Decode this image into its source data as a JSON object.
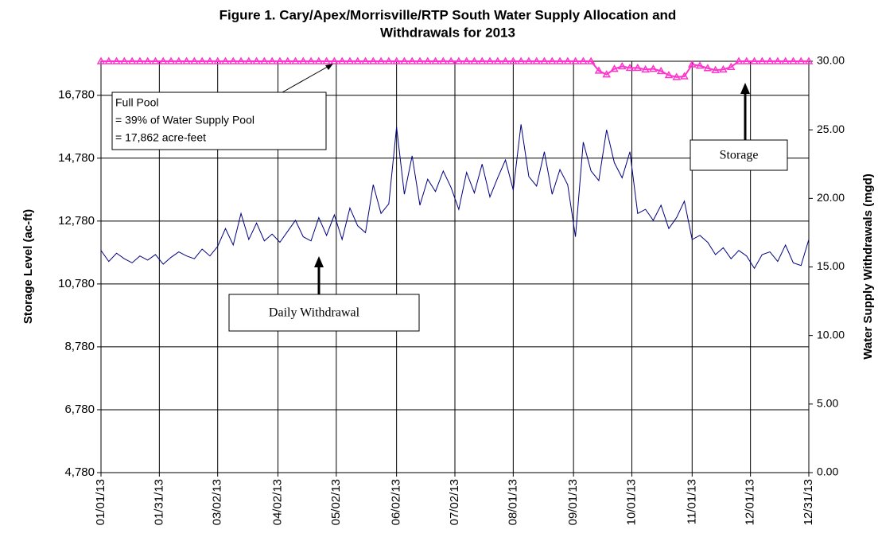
{
  "chart_data": {
    "type": "line",
    "title": [
      "Figure 1.  Cary/Apex/Morrisville/RTP South Water Supply Allocation and",
      "Withdrawals for 2013"
    ],
    "y_label": "Storage Level (ac-ft)",
    "y2_label": "Water Supply Withdrawals (mgd)",
    "x": [
      "01/01/13",
      "01/05/13",
      "01/09/13",
      "01/13/13",
      "01/17/13",
      "01/21/13",
      "01/25/13",
      "01/29/13",
      "02/02/13",
      "02/06/13",
      "02/10/13",
      "02/14/13",
      "02/18/13",
      "02/22/13",
      "02/26/13",
      "03/02/13",
      "03/06/13",
      "03/10/13",
      "03/14/13",
      "03/18/13",
      "03/22/13",
      "03/26/13",
      "03/30/13",
      "04/03/13",
      "04/07/13",
      "04/11/13",
      "04/15/13",
      "04/19/13",
      "04/23/13",
      "04/27/13",
      "05/01/13",
      "05/05/13",
      "05/09/13",
      "05/13/13",
      "05/17/13",
      "05/21/13",
      "05/25/13",
      "05/29/13",
      "06/02/13",
      "06/06/13",
      "06/10/13",
      "06/14/13",
      "06/18/13",
      "06/22/13",
      "06/26/13",
      "06/30/13",
      "07/04/13",
      "07/08/13",
      "07/12/13",
      "07/16/13",
      "07/20/13",
      "07/24/13",
      "07/28/13",
      "08/01/13",
      "08/05/13",
      "08/09/13",
      "08/13/13",
      "08/17/13",
      "08/21/13",
      "08/25/13",
      "08/29/13",
      "09/02/13",
      "09/06/13",
      "09/10/13",
      "09/14/13",
      "09/18/13",
      "09/22/13",
      "09/26/13",
      "09/30/13",
      "10/04/13",
      "10/08/13",
      "10/12/13",
      "10/16/13",
      "10/20/13",
      "10/24/13",
      "10/28/13",
      "11/01/13",
      "11/05/13",
      "11/09/13",
      "11/13/13",
      "11/17/13",
      "11/21/13",
      "11/25/13",
      "11/29/13",
      "12/03/13",
      "12/07/13",
      "12/11/13",
      "12/15/13",
      "12/19/13",
      "12/23/13",
      "12/27/13",
      "12/31/13"
    ],
    "series": [
      {
        "name": "Storage",
        "color": "#ff33cc",
        "axis": "y",
        "marker": "triangle",
        "values": [
          17862,
          17862,
          17862,
          17862,
          17862,
          17862,
          17862,
          17862,
          17862,
          17862,
          17862,
          17862,
          17862,
          17862,
          17862,
          17862,
          17862,
          17862,
          17862,
          17862,
          17862,
          17862,
          17862,
          17862,
          17862,
          17862,
          17862,
          17862,
          17862,
          17862,
          17862,
          17862,
          17862,
          17862,
          17862,
          17862,
          17862,
          17862,
          17862,
          17862,
          17862,
          17862,
          17862,
          17862,
          17862,
          17862,
          17862,
          17862,
          17862,
          17862,
          17862,
          17862,
          17862,
          17862,
          17862,
          17862,
          17862,
          17862,
          17862,
          17862,
          17862,
          17862,
          17862,
          17862,
          17560,
          17440,
          17620,
          17700,
          17650,
          17650,
          17600,
          17620,
          17550,
          17420,
          17360,
          17380,
          17760,
          17720,
          17640,
          17580,
          17600,
          17680,
          17862,
          17862,
          17862,
          17862,
          17862,
          17862,
          17862,
          17862,
          17862,
          17862
        ]
      },
      {
        "name": "Daily Withdrawal",
        "color": "#000080",
        "axis": "y2",
        "values": [
          16.2,
          15.4,
          16.0,
          15.6,
          15.3,
          15.8,
          15.5,
          15.9,
          15.2,
          15.7,
          16.1,
          15.8,
          15.6,
          16.3,
          15.8,
          16.5,
          17.8,
          16.6,
          18.9,
          17.0,
          18.2,
          16.9,
          17.4,
          16.8,
          17.6,
          18.4,
          17.2,
          16.9,
          18.6,
          17.3,
          18.8,
          17.0,
          19.3,
          18.0,
          17.5,
          21.0,
          18.9,
          19.6,
          25.2,
          20.3,
          23.1,
          19.5,
          21.4,
          20.5,
          22.0,
          20.8,
          19.2,
          21.9,
          20.4,
          22.5,
          20.1,
          21.5,
          22.8,
          20.6,
          25.4,
          21.6,
          20.9,
          23.4,
          20.3,
          22.1,
          21.0,
          17.2,
          24.1,
          22.0,
          21.3,
          25.0,
          22.6,
          21.5,
          23.4,
          18.9,
          19.2,
          18.4,
          19.5,
          17.8,
          18.6,
          19.8,
          17.0,
          17.3,
          16.8,
          15.9,
          16.4,
          15.6,
          16.2,
          15.8,
          14.9,
          15.9,
          16.1,
          15.4,
          16.6,
          15.3,
          15.1,
          17.0
        ]
      }
    ],
    "xlim": [
      "01/01/13",
      "12/31/13"
    ],
    "xticks": [
      "01/01/13",
      "01/31/13",
      "03/02/13",
      "04/02/13",
      "05/02/13",
      "06/02/13",
      "07/02/13",
      "08/01/13",
      "09/01/13",
      "10/01/13",
      "11/01/13",
      "12/01/13",
      "12/31/13"
    ],
    "ylim": [
      4780,
      17862
    ],
    "yticks": [
      {
        "value": 4780,
        "label": "4,780"
      },
      {
        "value": 6780,
        "label": "6,780"
      },
      {
        "value": 8780,
        "label": "8,780"
      },
      {
        "value": 10780,
        "label": "10,780"
      },
      {
        "value": 12780,
        "label": "12,780"
      },
      {
        "value": 14780,
        "label": "14,780"
      },
      {
        "value": 16780,
        "label": "16,780"
      }
    ],
    "y2lim": [
      0,
      30
    ],
    "y2ticks": [
      {
        "value": 0,
        "label": "0.00"
      },
      {
        "value": 5,
        "label": "5.00"
      },
      {
        "value": 10,
        "label": "10.00"
      },
      {
        "value": 15,
        "label": "15.00"
      },
      {
        "value": 20,
        "label": "20.00"
      },
      {
        "value": 25,
        "label": "25.00"
      },
      {
        "value": 30,
        "label": "30.00"
      }
    ],
    "grid": true,
    "annotations": {
      "full_pool": [
        "Full Pool",
        "= 39% of  Water Supply Pool",
        "= 17,862 acre-feet"
      ],
      "storage": "Storage",
      "daily": "Daily Withdrawal"
    }
  }
}
